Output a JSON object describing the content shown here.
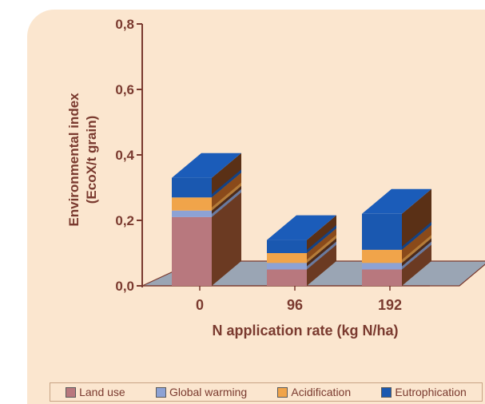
{
  "chart_data": {
    "type": "bar",
    "stacked": true,
    "style": "3d",
    "categories": [
      "0",
      "96",
      "192"
    ],
    "xlabel": "N application rate (kg N/ha)",
    "ylabel_lines": [
      "Environmental index",
      "(EcoX/t grain)"
    ],
    "ylim": [
      0,
      0.8
    ],
    "yticks": [
      "0,0",
      "0,2",
      "0,4",
      "0,6",
      "0,8"
    ],
    "series": [
      {
        "name": "Land use",
        "color": "#b8787e",
        "side": "#6b3a22",
        "values": [
          0.21,
          0.05,
          0.05
        ]
      },
      {
        "name": "Global warming",
        "color": "#8da2d4",
        "side": "#4d2a18",
        "values": [
          0.02,
          0.02,
          0.02
        ]
      },
      {
        "name": "Acidification",
        "color": "#f0a44a",
        "side": "#8a4a1a",
        "values": [
          0.04,
          0.03,
          0.04
        ]
      },
      {
        "name": "Eutrophication",
        "color": "#1a58b0",
        "side": "#5a3016",
        "values": [
          0.06,
          0.04,
          0.11
        ]
      }
    ]
  }
}
